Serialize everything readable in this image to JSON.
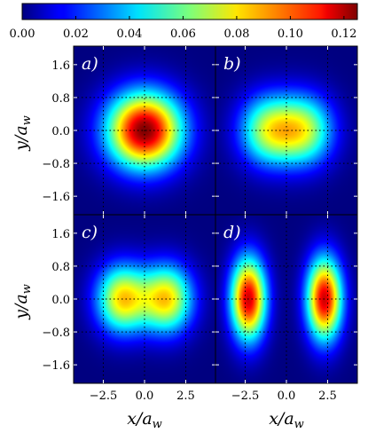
{
  "chart_data": {
    "type": "heatmap",
    "colormap": "jet",
    "colorbar": {
      "range": [
        0.0,
        0.125
      ],
      "ticks": [
        "0.00",
        "0.02",
        "0.04",
        "0.06",
        "0.08",
        "0.10",
        "0.12"
      ],
      "tick_values": [
        0.0,
        0.02,
        0.04,
        0.06,
        0.08,
        0.1,
        0.12
      ],
      "placement": "top"
    },
    "xlabel": "x/a",
    "xlabel_sub": "w",
    "ylabel": "y/a",
    "ylabel_sub": "w",
    "xlim": [
      -4.3,
      4.3
    ],
    "ylim": [
      -2.05,
      2.05
    ],
    "x_ticks": [
      "−2.5",
      "0.0",
      "2.5"
    ],
    "x_tick_values": [
      -2.5,
      0.0,
      2.5
    ],
    "y_ticks": [
      "1.6",
      "0.8",
      "0.0",
      "−0.8",
      "−1.6"
    ],
    "y_tick_values": [
      1.6,
      0.8,
      0.0,
      -0.8,
      -1.6
    ],
    "grid": "dotted",
    "grid_x": [
      -2.5,
      0.0,
      2.5
    ],
    "grid_y": [
      0.8,
      0.0,
      -0.8
    ],
    "panels": [
      {
        "label": "a)",
        "position": "top-left",
        "blobs": [
          {
            "x": 0.0,
            "y": 0.0,
            "sx": 1.6,
            "sy": 0.65,
            "amp": 0.125
          }
        ]
      },
      {
        "label": "b)",
        "position": "top-right",
        "blobs": [
          {
            "x": -1.1,
            "y": 0.0,
            "sx": 1.25,
            "sy": 0.6,
            "amp": 0.066
          },
          {
            "x": 1.1,
            "y": 0.0,
            "sx": 1.25,
            "sy": 0.6,
            "amp": 0.066
          }
        ]
      },
      {
        "label": "c)",
        "position": "bottom-left",
        "blobs": [
          {
            "x": -1.35,
            "y": 0.0,
            "sx": 1.1,
            "sy": 0.58,
            "amp": 0.082
          },
          {
            "x": 1.35,
            "y": 0.0,
            "sx": 1.1,
            "sy": 0.58,
            "amp": 0.082
          }
        ]
      },
      {
        "label": "d)",
        "position": "bottom-right",
        "blobs": [
          {
            "x": -2.3,
            "y": 0.0,
            "sx": 0.75,
            "sy": 0.7,
            "amp": 0.115
          },
          {
            "x": 2.3,
            "y": 0.0,
            "sx": 0.75,
            "sy": 0.7,
            "amp": 0.115
          }
        ]
      }
    ]
  }
}
